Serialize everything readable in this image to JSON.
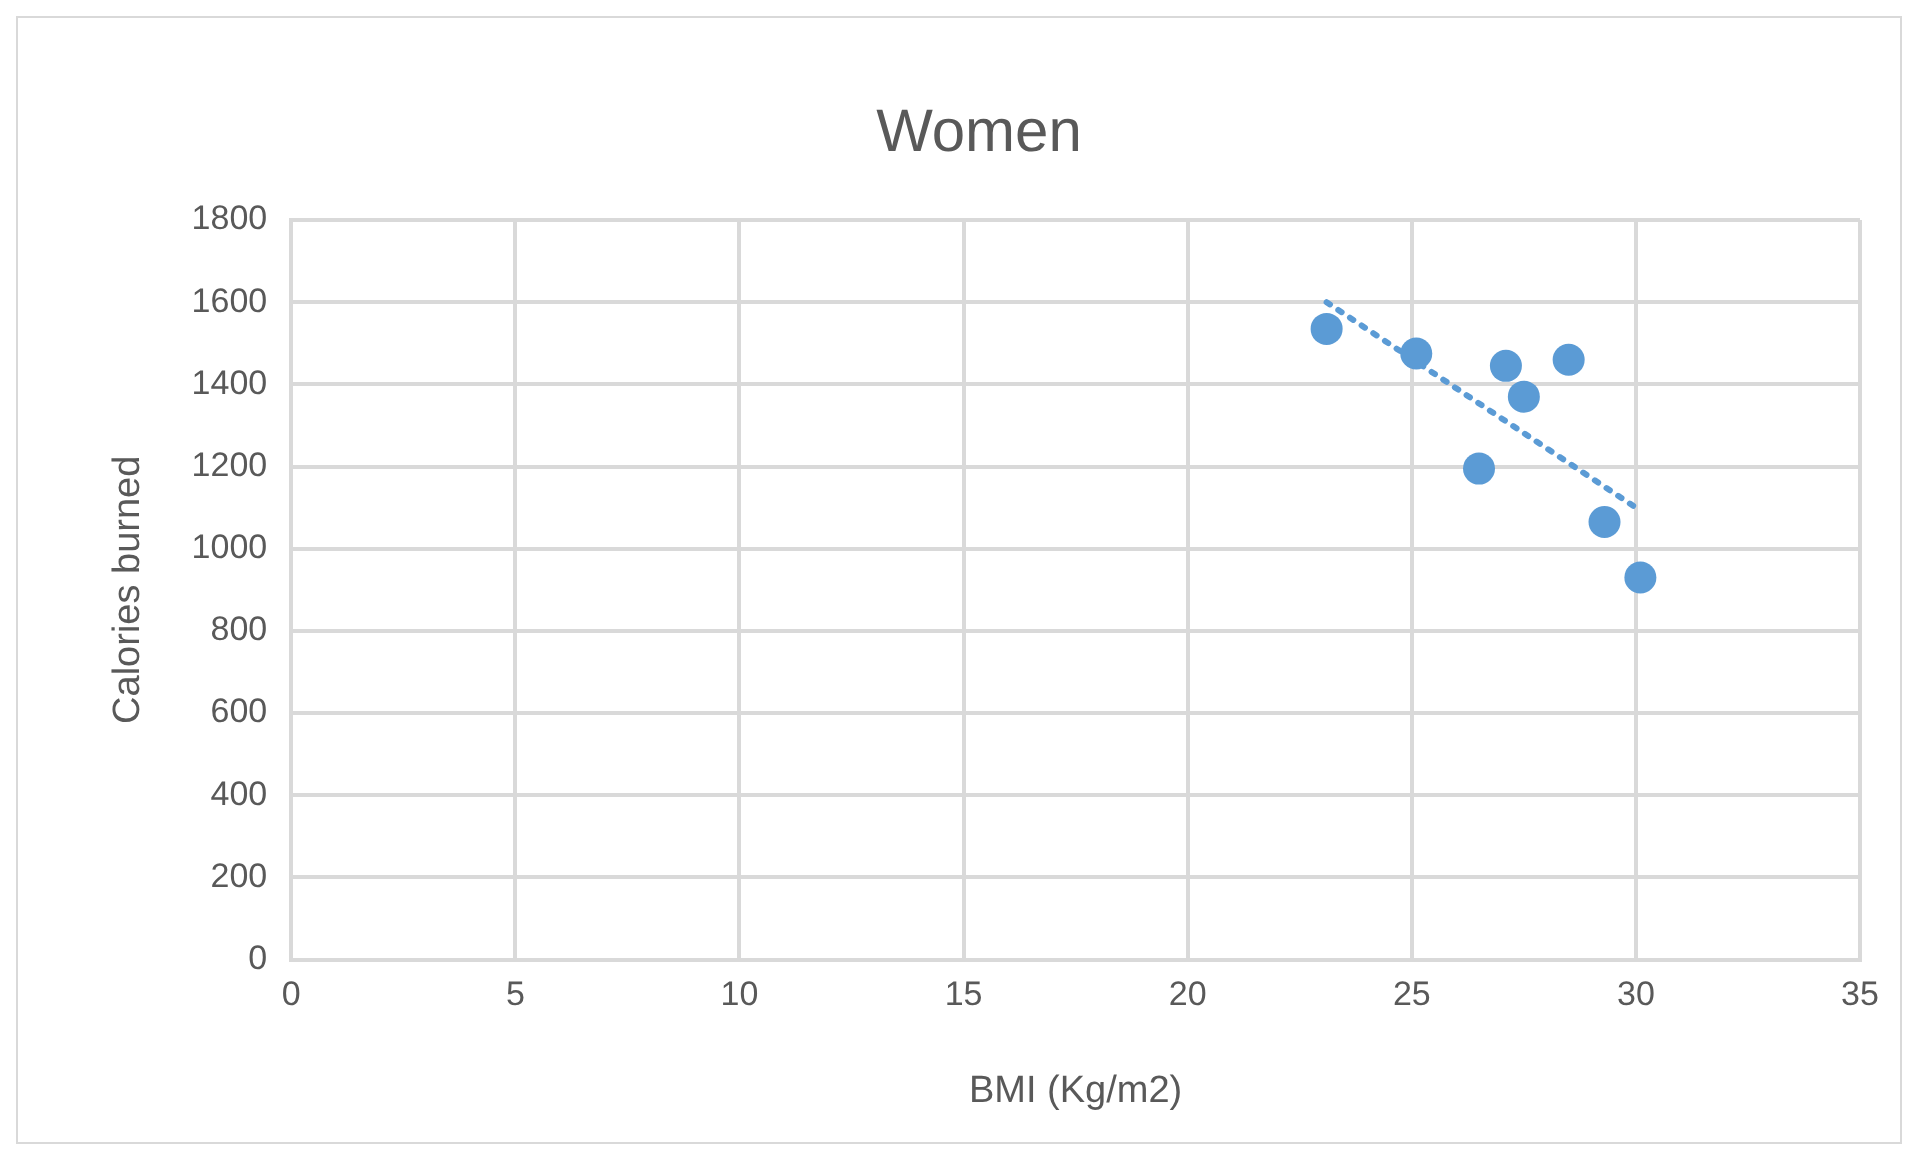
{
  "chart_data": {
    "type": "scatter",
    "title": "Women",
    "xlabel": "BMI (Kg/m2)",
    "ylabel": "Calories burned",
    "xlim": [
      0,
      35
    ],
    "xticks": [
      0,
      5,
      10,
      15,
      20,
      25,
      30,
      35
    ],
    "ylim": [
      0,
      1800
    ],
    "yticks": [
      0,
      200,
      400,
      600,
      800,
      1000,
      1200,
      1400,
      1600,
      1800
    ],
    "grid": true,
    "legend": false,
    "marker": "circle",
    "series": [
      {
        "type": "scatter",
        "color": "#5b9bd5",
        "x": [
          23.1,
          25.1,
          27.1,
          27.5,
          28.5,
          26.5,
          29.3,
          30.1
        ],
        "values": [
          1535,
          1475,
          1445,
          1370,
          1460,
          1195,
          1065,
          930
        ]
      },
      {
        "type": "line",
        "color": "#5b9bd5",
        "line_style": "dotted",
        "marker": "none",
        "x": [
          23.1,
          30.0
        ],
        "values": [
          1600,
          1100
        ]
      }
    ]
  }
}
